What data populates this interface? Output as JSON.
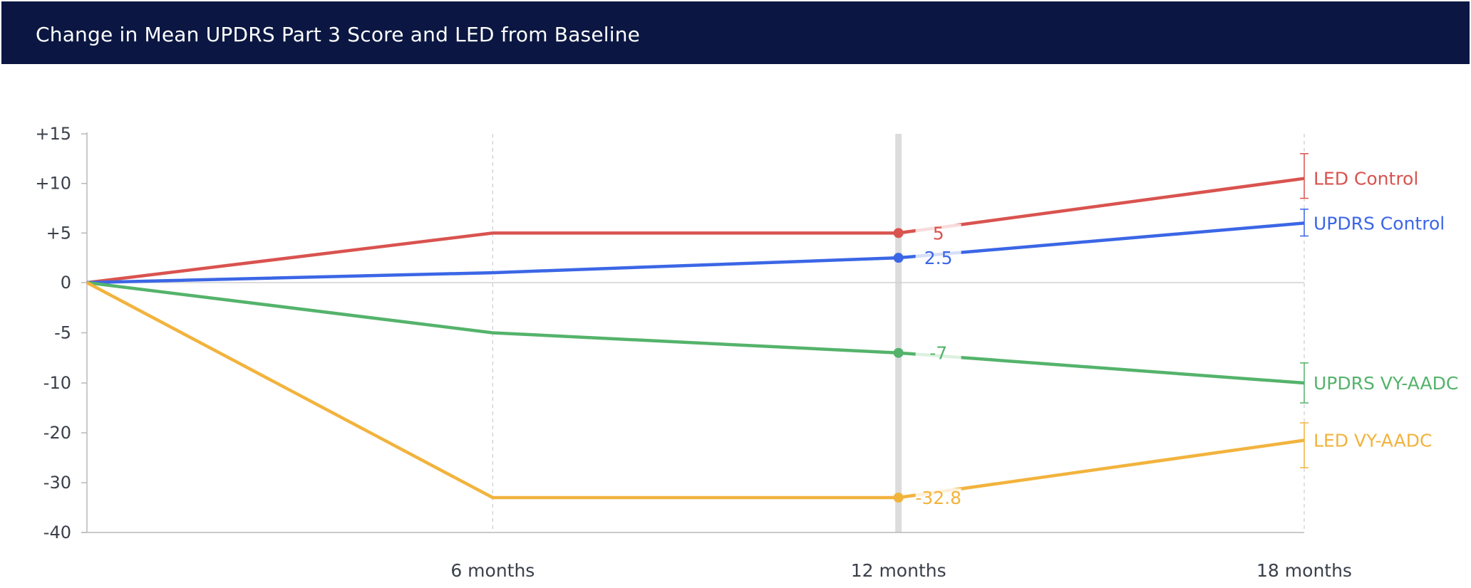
{
  "header": {
    "title": "Change in Mean UPDRS Part 3 Score and LED from Baseline"
  },
  "chart_data": {
    "type": "line",
    "title": "Change in Mean UPDRS Part 3 Score and LED from Baseline",
    "x": [
      0,
      6,
      12,
      18
    ],
    "x_tick_labels": [
      "6 months",
      "12 months",
      "18 months"
    ],
    "y_tick_values": [
      15,
      10,
      5,
      0,
      -5,
      -10,
      -20,
      -30,
      -40
    ],
    "y_tick_labels": [
      "+15",
      "+10",
      "+5",
      "0",
      "-5",
      "-10",
      "-20",
      "-30",
      "-40"
    ],
    "y_scale_note": "axis ticks unevenly spaced: +15 to -10 in steps of 5, then -10 to -40 in steps of 10",
    "highlighted_x": 12,
    "grid": "vertical dashed at each month tick; zero baseline",
    "series": [
      {
        "name": "LED Control",
        "color": "#d9534f",
        "values": [
          0,
          5,
          5,
          10.5
        ],
        "error_range": [
          8.5,
          13
        ],
        "highlight_label": "5"
      },
      {
        "name": "UPDRS Control",
        "color": "#3b66e6",
        "values": [
          0,
          1,
          2.5,
          6
        ],
        "error_range": [
          4.7,
          7.4
        ],
        "highlight_label": "2.5"
      },
      {
        "name": "UPDRS VY-AADC",
        "color": "#54b36b",
        "values": [
          0,
          -5,
          -7,
          -10
        ],
        "error_range": [
          -14,
          -8
        ],
        "highlight_label": "-7"
      },
      {
        "name": "LED VY-AADC",
        "color": "#f2b33d",
        "values": [
          0,
          -33,
          -33,
          -21.5
        ],
        "error_range": [
          -27,
          -18
        ],
        "highlight_label": "-32.8"
      }
    ]
  }
}
